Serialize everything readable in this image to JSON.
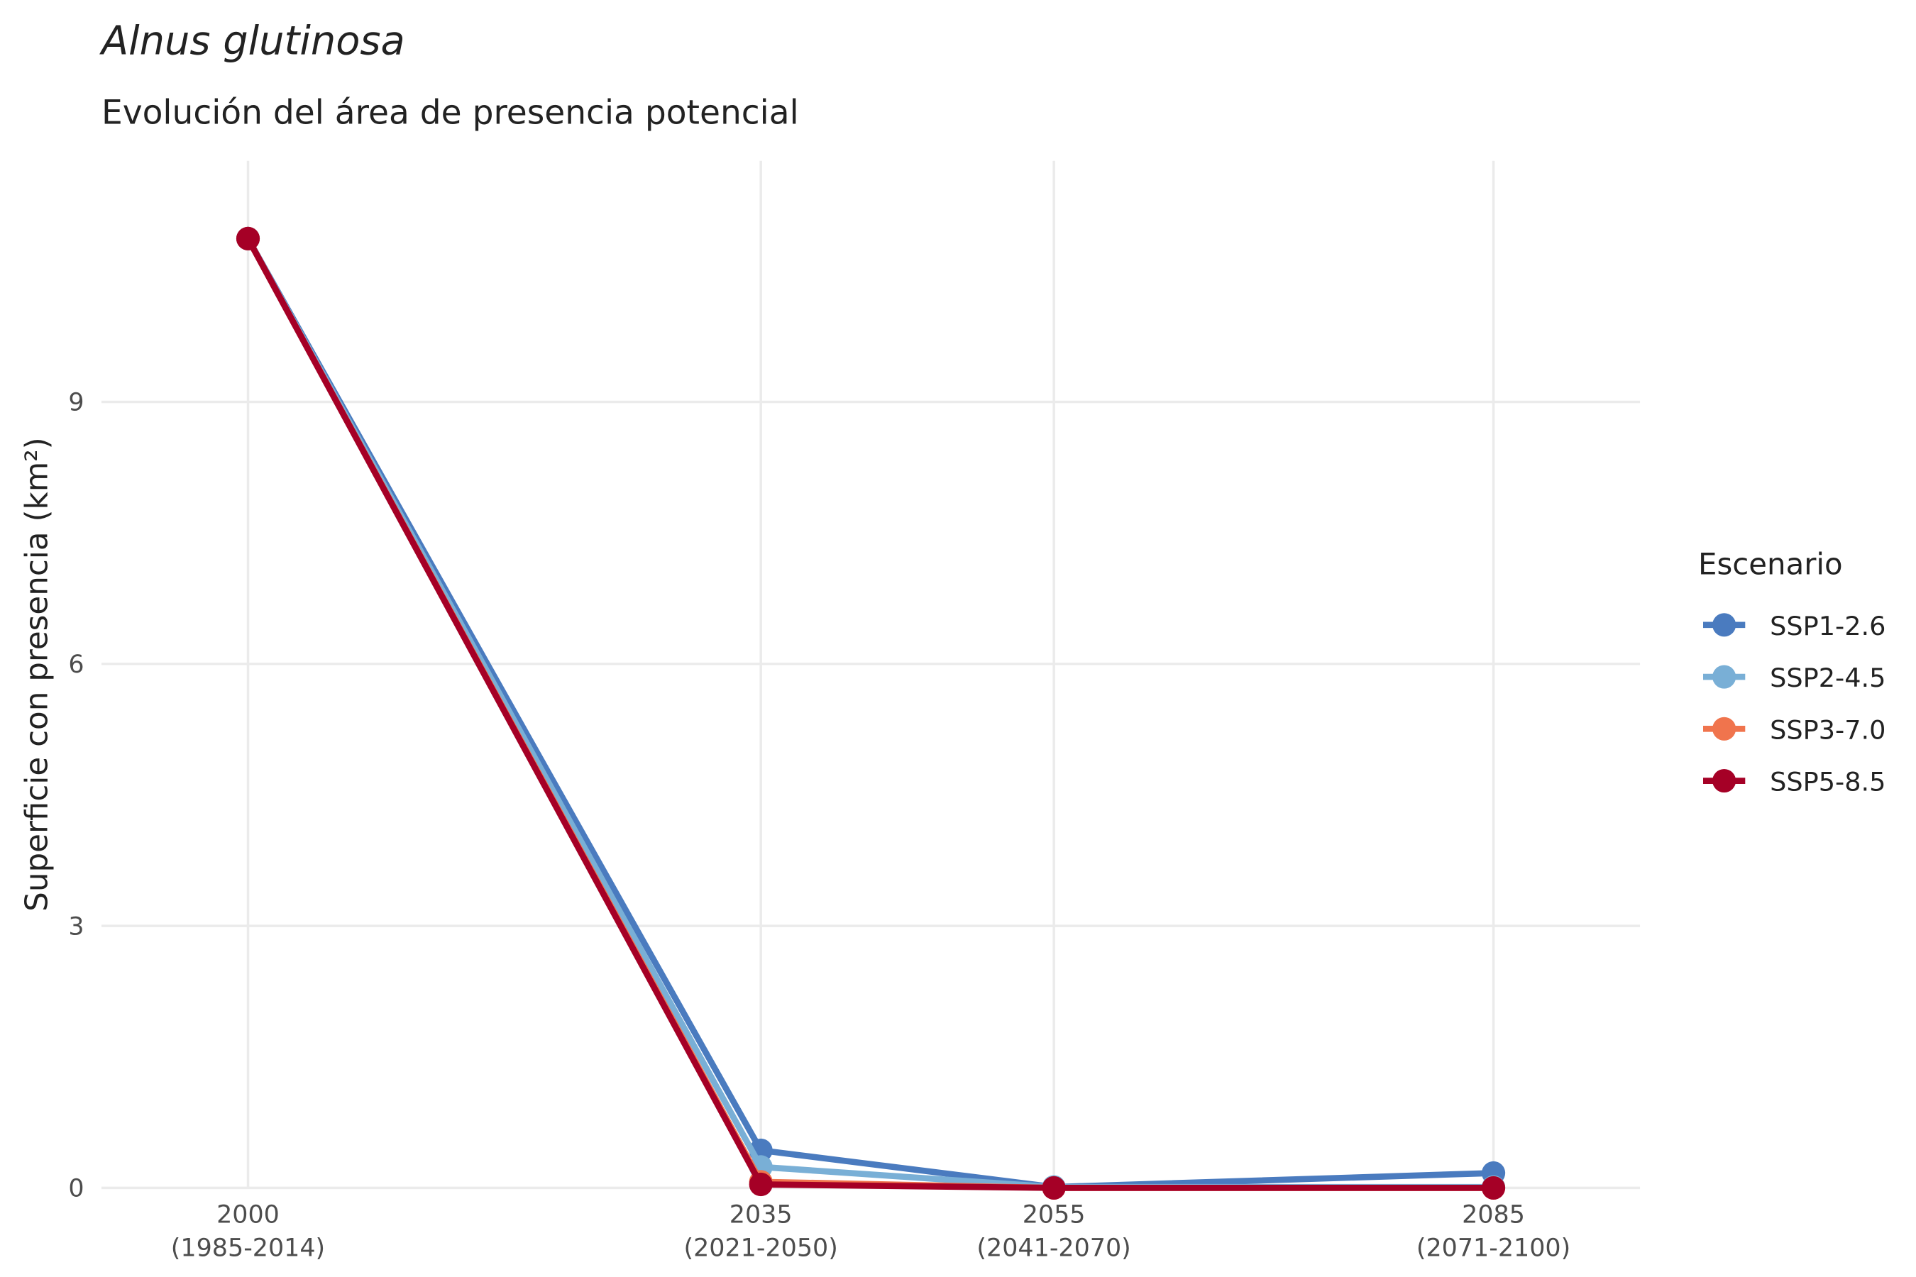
{
  "chart_data": {
    "type": "line",
    "title": "Alnus glutinosa",
    "subtitle": "Evolución del área de presencia potencial",
    "y_label": "Superficie con presencia (km²)",
    "legend_title": "Escenario",
    "legend_position": "right",
    "grid": true,
    "x": [
      2000,
      2035,
      2055,
      2085
    ],
    "xlim": [
      1990,
      2095
    ],
    "xticks": [
      {
        "value": 2000,
        "label": "2000\n(1985-2014)"
      },
      {
        "value": 2035,
        "label": "2035\n(2021-2050)"
      },
      {
        "value": 2055,
        "label": "2055\n(2041-2070)"
      },
      {
        "value": 2085,
        "label": "2085\n(2071-2100)"
      }
    ],
    "ylim": [
      0,
      11.76
    ],
    "yticks": [
      0,
      3,
      6,
      9
    ],
    "series": [
      {
        "name": "SSP1-2.6",
        "color": "#4a7bbf",
        "values": [
          10.87,
          0.43,
          0.01,
          0.17
        ]
      },
      {
        "name": "SSP2-4.5",
        "color": "#79afd6",
        "values": [
          10.87,
          0.24,
          0.01,
          0.01
        ]
      },
      {
        "name": "SSP3-7.0",
        "color": "#f0744d",
        "values": [
          10.87,
          0.07,
          0,
          0
        ]
      },
      {
        "name": "SSP5-8.5",
        "color": "#a50026",
        "values": [
          10.87,
          0.04,
          0,
          0
        ]
      }
    ]
  }
}
